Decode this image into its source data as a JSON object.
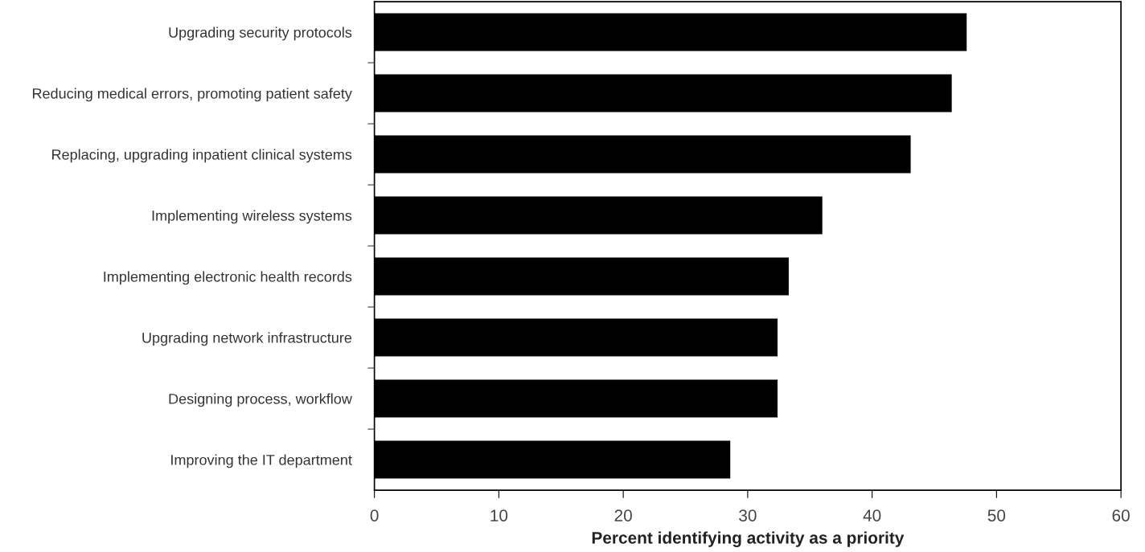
{
  "chart_data": {
    "type": "bar",
    "orientation": "horizontal",
    "xlabel": "Percent identifying activity as a priority",
    "categories": [
      "Upgrading security protocols",
      "Reducing medical errors, promoting patient safety",
      "Replacing, upgrading inpatient clinical systems",
      "Implementing wireless systems",
      "Implementing electronic health records",
      "Upgrading network infrastructure",
      "Designing process, workflow",
      "Improving the IT department"
    ],
    "values": [
      47.6,
      46.4,
      43.1,
      36.0,
      33.3,
      32.4,
      32.4,
      28.6
    ],
    "color": "#000000",
    "xlim": [
      0,
      60
    ],
    "xticks": [
      0,
      10,
      20,
      30,
      40,
      50,
      60
    ],
    "grid": false,
    "legend": false
  }
}
